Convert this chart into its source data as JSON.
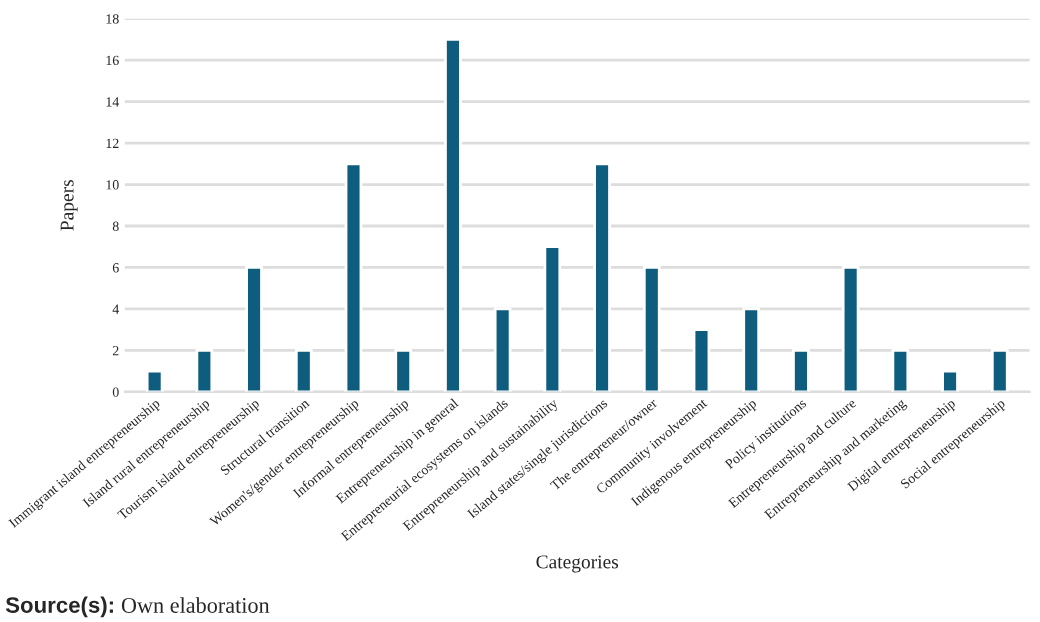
{
  "chart_data": {
    "type": "bar",
    "xlabel": "Categories",
    "ylabel": "Papers",
    "categories": [
      "Immigrant island entrepreneurship",
      "Island rural entrepreneurship",
      "Tourism island entrepreneurship",
      "Structural transition",
      "Women's/gender entrepreneurship",
      "Informal entrepreneurship",
      "Entrepreneurship in general",
      "Entrepreneurial ecosystems on islands",
      "Entrepreneurship and sustainability",
      "Island states/single jurisdictions",
      "The entrepreneur/owner",
      "Community involvement",
      "Indigenous entrepreneurship",
      "Policy institutions",
      "Entrepreneurship and culture",
      "Entrepreneurship and marketing",
      "Digital entrepreneurship",
      "Social entrepreneurship"
    ],
    "values": [
      1,
      2,
      6,
      2,
      11,
      2,
      17,
      4,
      7,
      11,
      6,
      3,
      4,
      2,
      6,
      2,
      1,
      2
    ],
    "color": "#0e5c7e",
    "ylim": [
      0,
      18
    ],
    "yticks": [
      0,
      2,
      4,
      6,
      8,
      10,
      12,
      14,
      16,
      18
    ],
    "grid": "y",
    "legend": false,
    "annotations": [
      "Source(s): Own elaboration"
    ]
  }
}
